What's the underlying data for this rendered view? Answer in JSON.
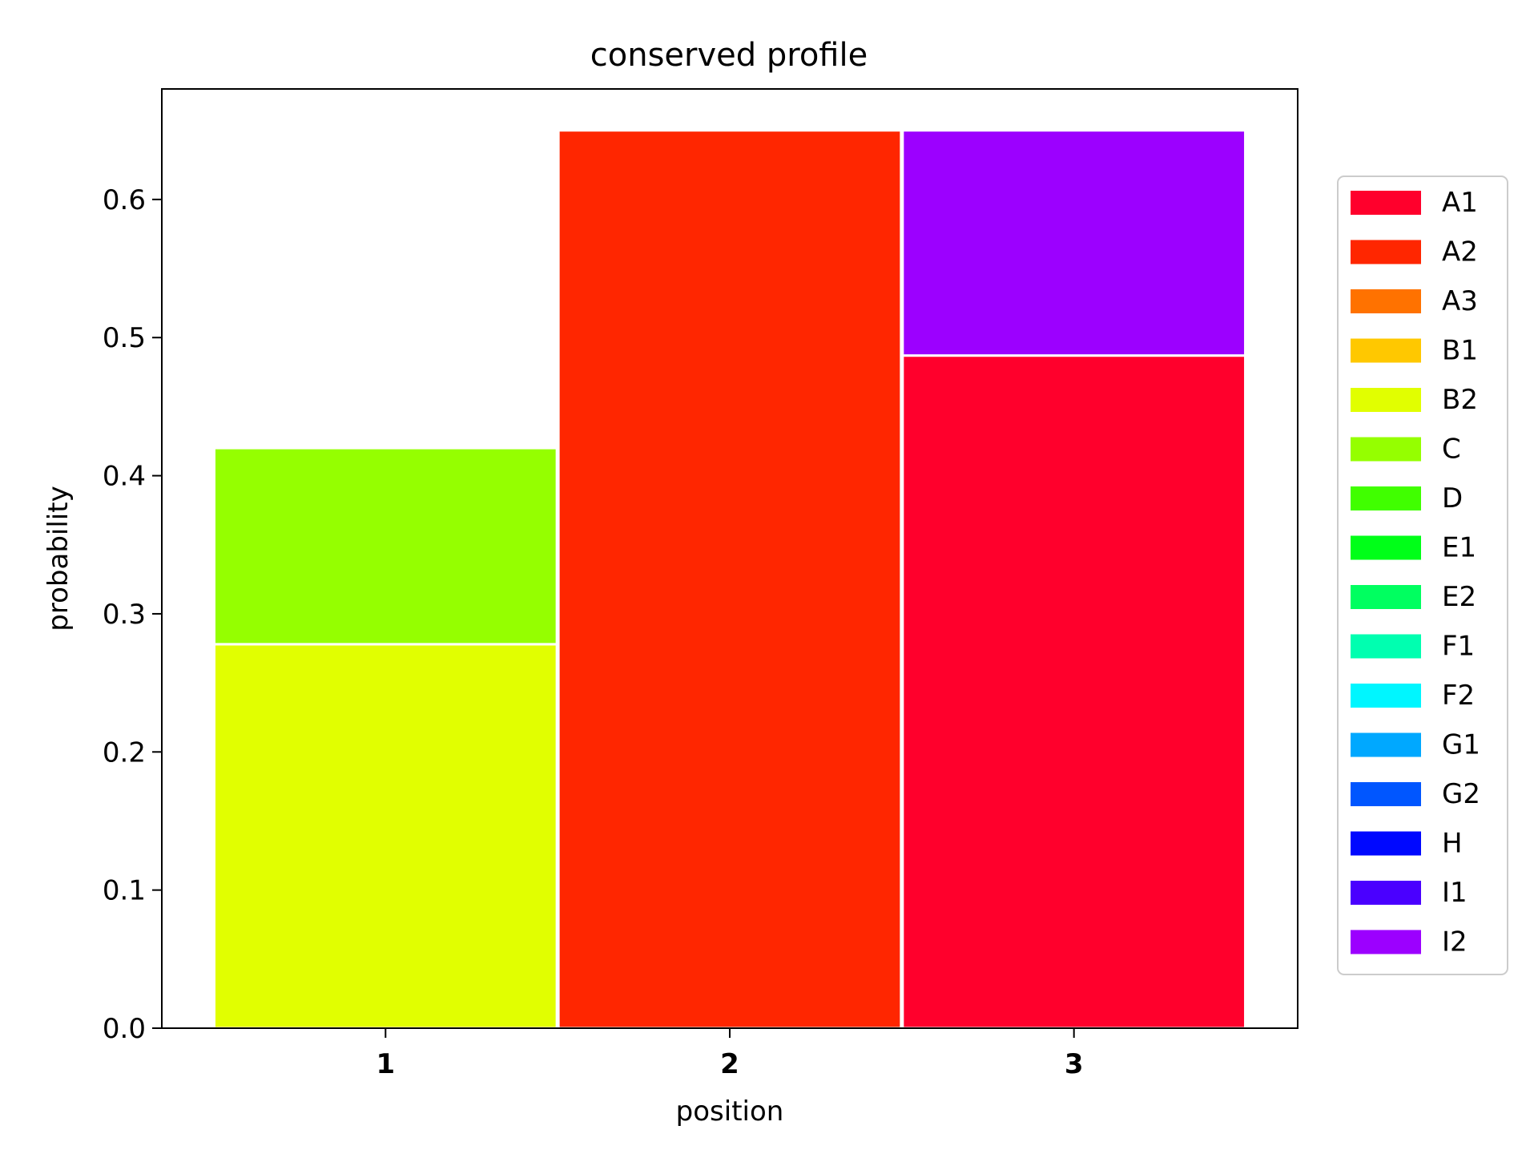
{
  "chart_data": {
    "type": "bar",
    "stacked": true,
    "title": "conserved profile",
    "xlabel": "position",
    "ylabel": "probability",
    "categories": [
      "1",
      "2",
      "3"
    ],
    "ylim": [
      0,
      0.68
    ],
    "yticks": [
      "0.0",
      "0.1",
      "0.2",
      "0.3",
      "0.4",
      "0.5",
      "0.6"
    ],
    "ytick_values": [
      0.0,
      0.1,
      0.2,
      0.3,
      0.4,
      0.5,
      0.6
    ],
    "grid": false,
    "legend_placement": "right",
    "series": [
      {
        "name": "A1",
        "color": "#ff002c",
        "values": [
          0,
          0,
          0.487
        ]
      },
      {
        "name": "A2",
        "color": "#ff2600",
        "values": [
          0,
          0.65,
          0
        ]
      },
      {
        "name": "A3",
        "color": "#ff7200",
        "values": [
          0,
          0,
          0
        ]
      },
      {
        "name": "B1",
        "color": "#ffc800",
        "values": [
          0,
          0,
          0
        ]
      },
      {
        "name": "B2",
        "color": "#e1ff00",
        "values": [
          0.278,
          0,
          0
        ]
      },
      {
        "name": "C",
        "color": "#95ff00",
        "values": [
          0.142,
          0,
          0
        ]
      },
      {
        "name": "D",
        "color": "#40ff00",
        "values": [
          0,
          0,
          0
        ]
      },
      {
        "name": "E1",
        "color": "#00ff18",
        "values": [
          0,
          0,
          0
        ]
      },
      {
        "name": "E2",
        "color": "#00ff60",
        "values": [
          0,
          0,
          0
        ]
      },
      {
        "name": "F1",
        "color": "#00ffb0",
        "values": [
          0,
          0,
          0
        ]
      },
      {
        "name": "F2",
        "color": "#00f6ff",
        "values": [
          0,
          0,
          0
        ]
      },
      {
        "name": "G1",
        "color": "#00a8ff",
        "values": [
          0,
          0,
          0
        ]
      },
      {
        "name": "G2",
        "color": "#0056ff",
        "values": [
          0,
          0,
          0
        ]
      },
      {
        "name": "H",
        "color": "#0008ff",
        "values": [
          0,
          0,
          0
        ]
      },
      {
        "name": "I1",
        "color": "#4a00ff",
        "values": [
          0,
          0,
          0
        ]
      },
      {
        "name": "I2",
        "color": "#9c00ff",
        "values": [
          0,
          0,
          0.163
        ]
      }
    ]
  }
}
